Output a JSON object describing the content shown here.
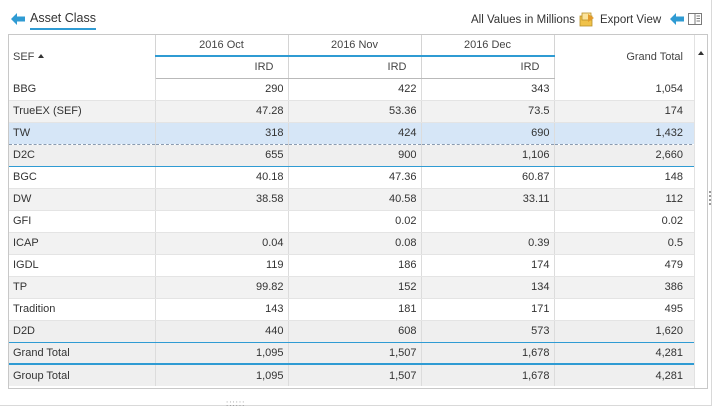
{
  "header": {
    "title": "Asset Class",
    "values_note": "All Values in Millions",
    "export_label": "Export View"
  },
  "colors": {
    "accent": "#2f9bd3",
    "selected_row": "#d6e6f7",
    "stripe": "#f2f2f2"
  },
  "icons": {
    "back": "arrow-left-icon",
    "export": "export-icon",
    "collapse": "arrow-left-icon",
    "panel": "panel-toggle-icon"
  },
  "table": {
    "row_header": "SEF",
    "periods": [
      "2016 Oct",
      "2016 Nov",
      "2016 Dec"
    ],
    "grand_total_header": "Grand Total",
    "measure": "IRD",
    "rows": [
      {
        "label": "BBG",
        "values": [
          "290",
          "422",
          "343",
          "1,054"
        ],
        "style": ""
      },
      {
        "label": "TrueEX (SEF)",
        "values": [
          "47.28",
          "53.36",
          "73.5",
          "174"
        ],
        "style": "stripe"
      },
      {
        "label": "TW",
        "values": [
          "318",
          "424",
          "690",
          "1,432"
        ],
        "style": "sel"
      },
      {
        "label": "D2C",
        "values": [
          "655",
          "900",
          "1,106",
          "2,660"
        ],
        "style": "subtotal"
      },
      {
        "label": "BGC",
        "values": [
          "40.18",
          "47.36",
          "60.87",
          "148"
        ],
        "style": ""
      },
      {
        "label": "DW",
        "values": [
          "38.58",
          "40.58",
          "33.11",
          "112"
        ],
        "style": "stripe"
      },
      {
        "label": "GFI",
        "values": [
          "",
          "0.02",
          "",
          "0.02"
        ],
        "style": ""
      },
      {
        "label": "ICAP",
        "values": [
          "0.04",
          "0.08",
          "0.39",
          "0.5"
        ],
        "style": "stripe"
      },
      {
        "label": "IGDL",
        "values": [
          "119",
          "186",
          "174",
          "479"
        ],
        "style": ""
      },
      {
        "label": "TP",
        "values": [
          "99.82",
          "152",
          "134",
          "386"
        ],
        "style": "stripe"
      },
      {
        "label": "Tradition",
        "values": [
          "143",
          "181",
          "171",
          "495"
        ],
        "style": ""
      },
      {
        "label": "D2D",
        "values": [
          "440",
          "608",
          "573",
          "1,620"
        ],
        "style": "subtotal"
      },
      {
        "label": "Grand Total",
        "values": [
          "1,095",
          "1,507",
          "1,678",
          "4,281"
        ],
        "style": "total"
      },
      {
        "label": "Group Total",
        "values": [
          "1,095",
          "1,507",
          "1,678",
          "4,281"
        ],
        "style": "group"
      }
    ]
  }
}
